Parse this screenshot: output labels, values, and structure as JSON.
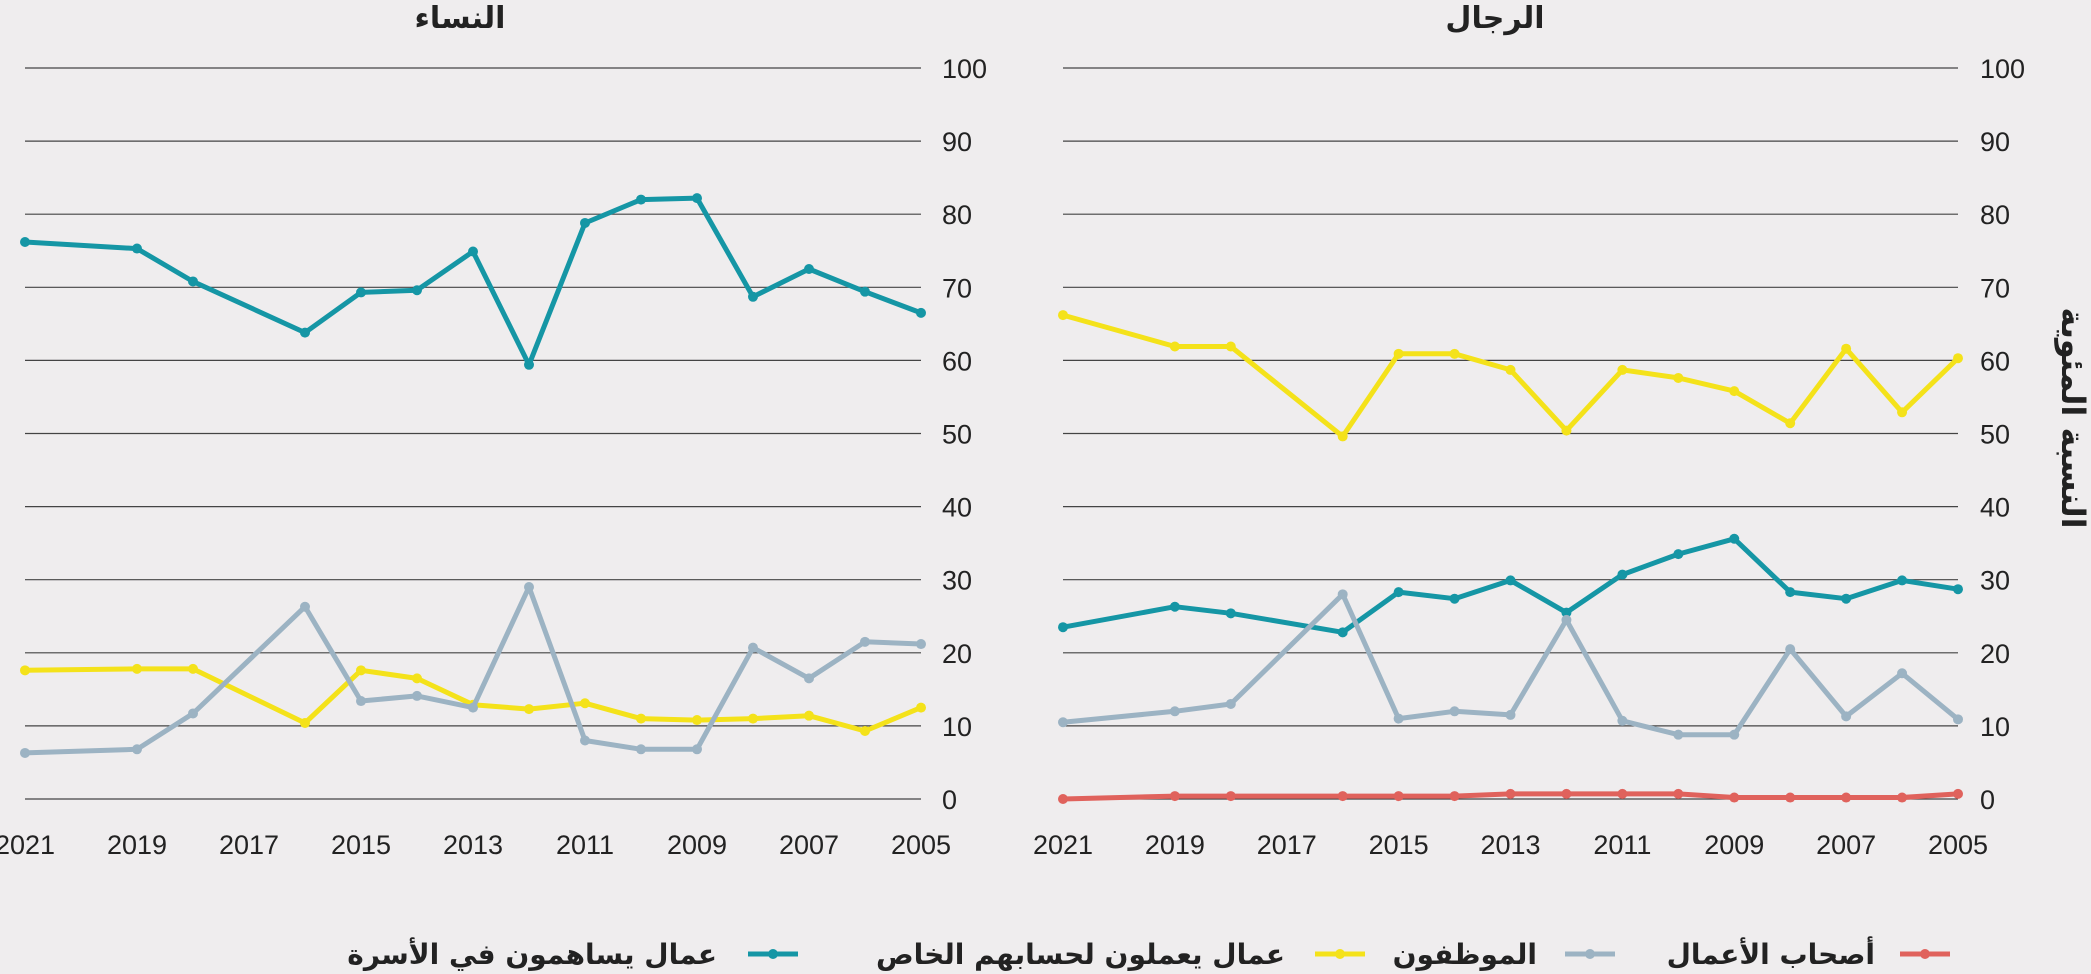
{
  "chart_data": [
    {
      "type": "line",
      "title": "النساء",
      "x": [
        2021,
        2019,
        2018,
        2016,
        2015,
        2014,
        2013,
        2012,
        2011,
        2010,
        2009,
        2008,
        2007,
        2006,
        2005
      ],
      "x_tick_labels": [
        "2021",
        "2019",
        "2017",
        "2015",
        "2013",
        "2011",
        "2009",
        "2007",
        "2005"
      ],
      "y_ticks": [
        "0",
        "10",
        "20",
        "30",
        "40",
        "50",
        "60",
        "70",
        "80",
        "90",
        "100"
      ],
      "ylim": [
        0,
        100
      ],
      "x_reversed": true,
      "grid": true,
      "series": [
        {
          "key": "family",
          "color": "#1596a5",
          "values": [
            76.2,
            75.3,
            70.8,
            63.8,
            69.3,
            69.6,
            74.9,
            59.4,
            78.8,
            82.0,
            82.2,
            68.7,
            72.5,
            69.4,
            66.5
          ]
        },
        {
          "key": "own",
          "color": "#f4e21a",
          "values": [
            17.6,
            17.8,
            17.8,
            10.4,
            17.6,
            16.5,
            12.9,
            12.3,
            13.1,
            11.0,
            10.8,
            11.0,
            11.4,
            9.3,
            12.5
          ]
        },
        {
          "key": "employers",
          "color": "#9cb3c3",
          "values": [
            6.3,
            6.8,
            11.7,
            26.3,
            13.4,
            14.1,
            12.5,
            29.0,
            8.0,
            6.8,
            6.8,
            20.7,
            16.5,
            21.5,
            21.2
          ]
        }
      ]
    },
    {
      "type": "line",
      "title": "الرجال",
      "x": [
        2021,
        2019,
        2018,
        2016,
        2015,
        2014,
        2013,
        2012,
        2011,
        2010,
        2009,
        2008,
        2007,
        2006,
        2005
      ],
      "x_tick_labels": [
        "2021",
        "2019",
        "2017",
        "2015",
        "2013",
        "2011",
        "2009",
        "2007",
        "2005"
      ],
      "y_ticks": [
        "0",
        "10",
        "20",
        "30",
        "40",
        "50",
        "60",
        "70",
        "80",
        "90",
        "100"
      ],
      "ylim": [
        0,
        100
      ],
      "x_reversed": true,
      "grid": true,
      "ylabel": "النسبة المئوية",
      "series": [
        {
          "key": "employees",
          "color": "#f4e21a",
          "values": [
            66.2,
            61.9,
            61.9,
            49.6,
            60.9,
            60.9,
            58.7,
            50.4,
            58.7,
            57.6,
            55.8,
            51.4,
            61.6,
            52.9,
            60.3
          ]
        },
        {
          "key": "family",
          "color": "#1596a5",
          "values": [
            23.5,
            26.3,
            25.4,
            22.8,
            28.3,
            27.4,
            29.9,
            25.5,
            30.7,
            33.5,
            35.6,
            28.3,
            27.4,
            29.9,
            28.7
          ]
        },
        {
          "key": "employers",
          "color": "#9cb3c3",
          "values": [
            10.5,
            12.0,
            13.0,
            28.0,
            11.0,
            12.0,
            11.5,
            24.5,
            10.7,
            8.8,
            8.8,
            20.5,
            11.3,
            17.2,
            10.9
          ]
        },
        {
          "key": "bosses",
          "color": "#e0625c",
          "values": [
            0.0,
            0.4,
            0.4,
            0.4,
            0.4,
            0.4,
            0.7,
            0.7,
            0.7,
            0.7,
            0.2,
            0.2,
            0.2,
            0.2,
            0.7
          ]
        }
      ]
    }
  ],
  "legend": [
    {
      "key": "bosses",
      "label": "أصحاب الأعمال",
      "color": "#e0625c"
    },
    {
      "key": "employers",
      "label": "الموظفون",
      "color": "#9cb3c3"
    },
    {
      "key": "own",
      "label": "عمال يعملون لحسابهم الخاص",
      "color": "#f4e21a"
    },
    {
      "key": "family",
      "label": "عمال يساهمون في الأسرة",
      "color": "#1596a5"
    }
  ]
}
